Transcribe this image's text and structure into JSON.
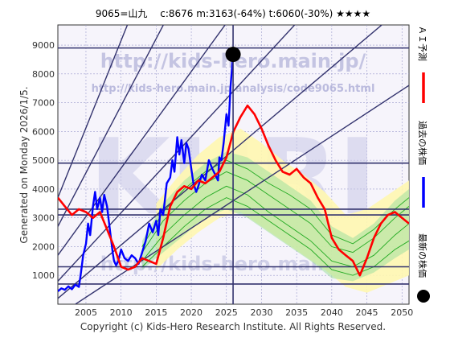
{
  "header": {
    "title": "9065=山九　 c:8676  m:3163(-64%)  t:6060(-30%)  ★★★★"
  },
  "side_text": {
    "generated": "Generated on Monday 2026/1/5.",
    "copyright": "Copyright (c) Kids-Hero Research Institute. All Rights Reserved."
  },
  "watermark": {
    "url1": "http://kids-hero.main.jp/",
    "url2": "http://kids-hero.main.jp/analysis/code9065.html",
    "logo": "KHRI",
    "url3": "http://kids-hero.main.jp/"
  },
  "legend": [
    {
      "name": "ＡＩ予測",
      "color": "#ff0000"
    },
    {
      "name": "過去の株価",
      "color": "#0000ff"
    },
    {
      "name": "最新の株価",
      "color": "#000000"
    }
  ],
  "colors": {
    "ai": "#ff0000",
    "past": "#0000ff",
    "latest": "#000000",
    "channel": "#33336e",
    "band_fill": "#fff7b0",
    "green_line": "#22aa22",
    "green_fill": "#9fe09f",
    "grid": "#9999cc",
    "plot_bg": "#f6f4fb"
  },
  "chart_data": {
    "type": "line",
    "title": "9065=山九　 c:8676  m:3163(-64%)  t:6060(-30%)  ★★★★",
    "xlabel": "",
    "ylabel": "",
    "xlim": [
      2001,
      2051
    ],
    "ylim": [
      0,
      9700
    ],
    "x_ticks": [
      2005,
      2010,
      2015,
      2020,
      2025,
      2030,
      2035,
      2040,
      2045,
      2050
    ],
    "y_ticks": [
      1000,
      2000,
      3000,
      4000,
      5000,
      6000,
      7000,
      8000,
      9000
    ],
    "grid": true,
    "legend_position": "right-vertical",
    "horizontal_levels": [
      700,
      1300,
      3100,
      3300,
      4900,
      8900
    ],
    "latest_point": {
      "x": 2025.95,
      "y": 8676
    },
    "latest_vertical_line_x": 2025.95,
    "series": [
      {
        "name": "過去の株価",
        "x": [
          2001.0,
          2001.5,
          2002.0,
          2002.5,
          2003.0,
          2003.5,
          2004.0,
          2004.3,
          2004.6,
          2005.0,
          2005.3,
          2005.6,
          2006.0,
          2006.3,
          2006.6,
          2007.0,
          2007.3,
          2007.6,
          2008.0,
          2008.4,
          2008.8,
          2009.0,
          2009.3,
          2009.6,
          2010.0,
          2010.5,
          2011.0,
          2011.5,
          2012.0,
          2012.5,
          2013.0,
          2013.5,
          2014.0,
          2014.5,
          2015.0,
          2015.3,
          2015.6,
          2016.0,
          2016.5,
          2017.0,
          2017.3,
          2017.6,
          2018.0,
          2018.3,
          2018.6,
          2019.0,
          2019.3,
          2019.6,
          2020.0,
          2020.3,
          2020.7,
          2021.0,
          2021.5,
          2022.0,
          2022.5,
          2023.0,
          2023.4,
          2023.8,
          2024.0,
          2024.3,
          2024.6,
          2025.0,
          2025.3,
          2025.6,
          2025.95
        ],
        "y": [
          450,
          550,
          500,
          620,
          520,
          680,
          600,
          1100,
          1700,
          2100,
          2800,
          2400,
          3400,
          3900,
          3300,
          3700,
          3200,
          3800,
          3400,
          2600,
          1800,
          1500,
          1350,
          1500,
          1900,
          1600,
          1500,
          1700,
          1600,
          1400,
          1800,
          2200,
          2800,
          2500,
          2900,
          2400,
          3300,
          3100,
          4200,
          4400,
          5000,
          4600,
          5800,
          5200,
          5700,
          4900,
          5600,
          5400,
          4700,
          4200,
          3900,
          4100,
          4500,
          4300,
          5000,
          4700,
          4500,
          4300,
          5100,
          5000,
          5600,
          6600,
          6200,
          7600,
          8676
        ]
      },
      {
        "name": "ＡＩ予測",
        "x": [
          2001.0,
          2002.0,
          2003.0,
          2004.0,
          2005.0,
          2006.0,
          2007.0,
          2008.0,
          2009.0,
          2010.0,
          2011.0,
          2012.0,
          2013.0,
          2014.0,
          2015.0,
          2016.0,
          2017.0,
          2018.0,
          2019.0,
          2020.0,
          2021.0,
          2022.0,
          2023.0,
          2024.0,
          2025.0,
          2026.0,
          2027.0,
          2028.0,
          2029.0,
          2030.0,
          2031.0,
          2032.0,
          2033.0,
          2034.0,
          2035.0,
          2036.0,
          2037.0,
          2038.0,
          2039.0,
          2040.0,
          2041.0,
          2042.0,
          2043.0,
          2044.0,
          2045.0,
          2046.0,
          2047.0,
          2048.0,
          2049.0,
          2050.0,
          2051.0
        ],
        "y": [
          3700,
          3400,
          3100,
          3300,
          3200,
          3000,
          3200,
          2600,
          2000,
          1300,
          1200,
          1300,
          1600,
          1500,
          1400,
          2300,
          3400,
          3900,
          4100,
          4000,
          4300,
          4200,
          4400,
          4600,
          5100,
          6000,
          6500,
          6900,
          6600,
          6100,
          5500,
          5000,
          4600,
          4500,
          4700,
          4400,
          4200,
          3700,
          3300,
          2300,
          1900,
          1700,
          1500,
          1000,
          1600,
          2300,
          2800,
          3100,
          3200,
          3000,
          2800
        ]
      }
    ],
    "channel_lines": [
      {
        "x": [
          2001,
          2051
        ],
        "y": [
          3700,
          34000
        ]
      },
      {
        "x": [
          2001,
          2051
        ],
        "y": [
          2700,
          26000
        ]
      },
      {
        "x": [
          2001,
          2051
        ],
        "y": [
          1700,
          18500
        ]
      },
      {
        "x": [
          2001,
          2051
        ],
        "y": [
          800,
          14000
        ]
      },
      {
        "x": [
          2001,
          2051
        ],
        "y": [
          200,
          10500
        ]
      },
      {
        "x": [
          2001,
          2051
        ],
        "y": [
          -400,
          7600
        ]
      }
    ],
    "band": {
      "x": [
        2015,
        2018,
        2021,
        2024,
        2027,
        2030,
        2033,
        2036,
        2039,
        2042,
        2045,
        2048,
        2051
      ],
      "upper": [
        3500,
        4400,
        5200,
        5800,
        6100,
        5600,
        5000,
        4500,
        3900,
        3100,
        3300,
        3800,
        4300
      ],
      "lower": [
        1200,
        1900,
        2500,
        3000,
        3200,
        2700,
        2200,
        1700,
        1200,
        600,
        400,
        700,
        1000
      ]
    },
    "green_band": {
      "x": [
        2013,
        2016,
        2019,
        2022,
        2025,
        2028,
        2031,
        2034,
        2037,
        2040,
        2043,
        2046,
        2049,
        2051
      ],
      "upper": [
        2200,
        3500,
        4300,
        4900,
        5300,
        5100,
        4600,
        4100,
        3600,
        2700,
        2300,
        2800,
        3600,
        4000
      ],
      "lower": [
        1200,
        1800,
        2400,
        3000,
        3300,
        3000,
        2500,
        2000,
        1500,
        900,
        800,
        1100,
        1600,
        1900
      ]
    },
    "green_lines": [
      {
        "x": [
          2013,
          2016,
          2019,
          2022,
          2025,
          2028,
          2031,
          2034,
          2037,
          2040,
          2043,
          2046,
          2049,
          2051
        ],
        "y": [
          1800,
          2900,
          3600,
          4200,
          4600,
          4300,
          3800,
          3300,
          2800,
          2000,
          1800,
          2300,
          3000,
          3400
        ]
      },
      {
        "x": [
          2013,
          2016,
          2019,
          2022,
          2025,
          2028,
          2031,
          2034,
          2037,
          2040,
          2043,
          2046,
          2049,
          2051
        ],
        "y": [
          1500,
          2400,
          3100,
          3700,
          4100,
          3800,
          3200,
          2700,
          2200,
          1500,
          1300,
          1700,
          2400,
          2800
        ]
      },
      {
        "x": [
          2013,
          2016,
          2019,
          2022,
          2025,
          2028,
          2031,
          2034,
          2037,
          2040,
          2043,
          2046,
          2049,
          2051
        ],
        "y": [
          1300,
          2000,
          2700,
          3300,
          3700,
          3400,
          2900,
          2400,
          1900,
          1200,
          1000,
          1300,
          1900,
          2200
        ]
      },
      {
        "x": [
          2013,
          2016,
          2019,
          2022,
          2025,
          2028,
          2031,
          2034,
          2037,
          2040,
          2043,
          2046,
          2049,
          2051
        ],
        "y": [
          2000,
          3200,
          4000,
          4600,
          5000,
          4700,
          4200,
          3800,
          3300,
          2400,
          2100,
          2600,
          3300,
          3700
        ]
      }
    ]
  }
}
